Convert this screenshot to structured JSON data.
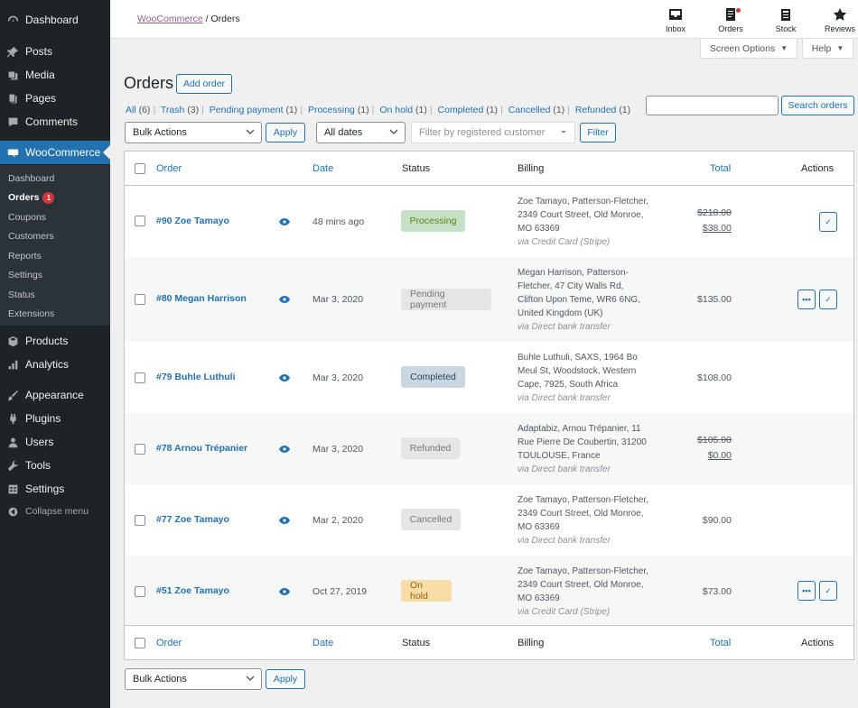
{
  "sidebar": {
    "items": [
      {
        "label": "Dashboard",
        "icon": "dashboard-icon"
      },
      {
        "label": "Posts",
        "icon": "pin-icon"
      },
      {
        "label": "Media",
        "icon": "media-icon"
      },
      {
        "label": "Pages",
        "icon": "pages-icon"
      },
      {
        "label": "Comments",
        "icon": "comment-icon"
      },
      {
        "label": "WooCommerce",
        "icon": "woo-icon"
      },
      {
        "label": "Products",
        "icon": "box-icon"
      },
      {
        "label": "Analytics",
        "icon": "bar-chart-icon"
      },
      {
        "label": "Appearance",
        "icon": "brush-icon"
      },
      {
        "label": "Plugins",
        "icon": "plug-icon"
      },
      {
        "label": "Users",
        "icon": "user-icon"
      },
      {
        "label": "Tools",
        "icon": "wrench-icon"
      },
      {
        "label": "Settings",
        "icon": "settings-icon"
      },
      {
        "label": "Collapse menu",
        "icon": "collapse-icon"
      }
    ],
    "submenu": [
      {
        "label": "Dashboard"
      },
      {
        "label": "Orders",
        "badge": "1"
      },
      {
        "label": "Coupons"
      },
      {
        "label": "Customers"
      },
      {
        "label": "Reports"
      },
      {
        "label": "Settings"
      },
      {
        "label": "Status"
      },
      {
        "label": "Extensions"
      }
    ]
  },
  "header": {
    "breadcrumb_parent": "WooCommerce",
    "breadcrumb_sep": "/",
    "breadcrumb_current": "Orders",
    "actions": [
      {
        "label": "Inbox",
        "icon": "inbox-icon"
      },
      {
        "label": "Orders",
        "icon": "orders-icon"
      },
      {
        "label": "Stock",
        "icon": "stock-icon"
      },
      {
        "label": "Reviews",
        "icon": "star-icon"
      }
    ],
    "screen_options": "Screen Options",
    "help": "Help"
  },
  "page": {
    "title": "Orders",
    "add_order": "Add order",
    "search_button": "Search orders",
    "search_value": "",
    "status_links": [
      {
        "label": "All",
        "count": "(6)"
      },
      {
        "label": "Trash",
        "count": "(3)"
      },
      {
        "label": "Pending payment",
        "count": "(1)"
      },
      {
        "label": "Processing",
        "count": "(1)"
      },
      {
        "label": "On hold",
        "count": "(1)"
      },
      {
        "label": "Completed",
        "count": "(1)"
      },
      {
        "label": "Cancelled",
        "count": "(1)"
      },
      {
        "label": "Refunded",
        "count": "(1)"
      }
    ],
    "separator": "|",
    "bulk_actions": "Bulk Actions",
    "apply": "Apply",
    "dates": "All dates",
    "customer_placeholder": "Filter by registered customer",
    "filter": "Filter"
  },
  "table": {
    "columns": {
      "order": "Order",
      "date": "Date",
      "status": "Status",
      "billing": "Billing",
      "total": "Total",
      "actions": "Actions"
    },
    "rows": [
      {
        "order": "#90 Zoe Tamayo",
        "date": "48 mins ago",
        "status": "Processing",
        "billing": [
          "Zoe Tamayo, Patterson-Fletcher,",
          "2349 Court Street, Old Monroe,",
          "MO 63369"
        ],
        "via": "via Credit Card (Stripe)",
        "total_old": "$218.00",
        "total": "$38.00"
      },
      {
        "order": "#80 Megan Harrison",
        "date": "Mar 3, 2020",
        "status": "Pending payment",
        "billing": [
          "Megan Harrison, Patterson-",
          "Fletcher, 47 City Walls Rd,",
          "Clifton Upon Teme, WR6 6NG,",
          "United Kingdom (UK)"
        ],
        "via": "via Direct bank transfer",
        "total": "$135.00"
      },
      {
        "order": "#79 Buhle Luthuli",
        "date": "Mar 3, 2020",
        "status": "Completed",
        "billing": [
          "Buhle Luthuli, SAXS, 1964 Bo",
          "Meul St, Woodstock, Western",
          "Cape, 7925, South Africa"
        ],
        "via": "via Direct bank transfer",
        "total": "$108.00"
      },
      {
        "order": "#78 Arnou Trépanier",
        "date": "Mar 3, 2020",
        "status": "Refunded",
        "billing": [
          "Adaptabiz, Arnou Trépanier, 11",
          "Rue Pierre De Coubertin, 31200",
          "TOULOUSE, France"
        ],
        "via": "via Direct bank transfer",
        "total_old": "$105.00",
        "total": "$0.00"
      },
      {
        "order": "#77 Zoe Tamayo",
        "date": "Mar 2, 2020",
        "status": "Cancelled",
        "billing": [
          "Zoe Tamayo, Patterson-Fletcher,",
          "2349 Court Street, Old Monroe,",
          "MO 63369"
        ],
        "via": "via Direct bank transfer",
        "total": "$90.00"
      },
      {
        "order": "#51 Zoe Tamayo",
        "date": "Oct 27, 2019",
        "status": "On hold",
        "billing": [
          "Zoe Tamayo, Patterson-Fletcher,",
          "2349 Court Street, Old Monroe,",
          "MO 63369"
        ],
        "via": "via Credit Card (Stripe)",
        "total": "$73.00"
      }
    ],
    "action_icons": {
      "more": "•••",
      "complete": "✓"
    }
  }
}
